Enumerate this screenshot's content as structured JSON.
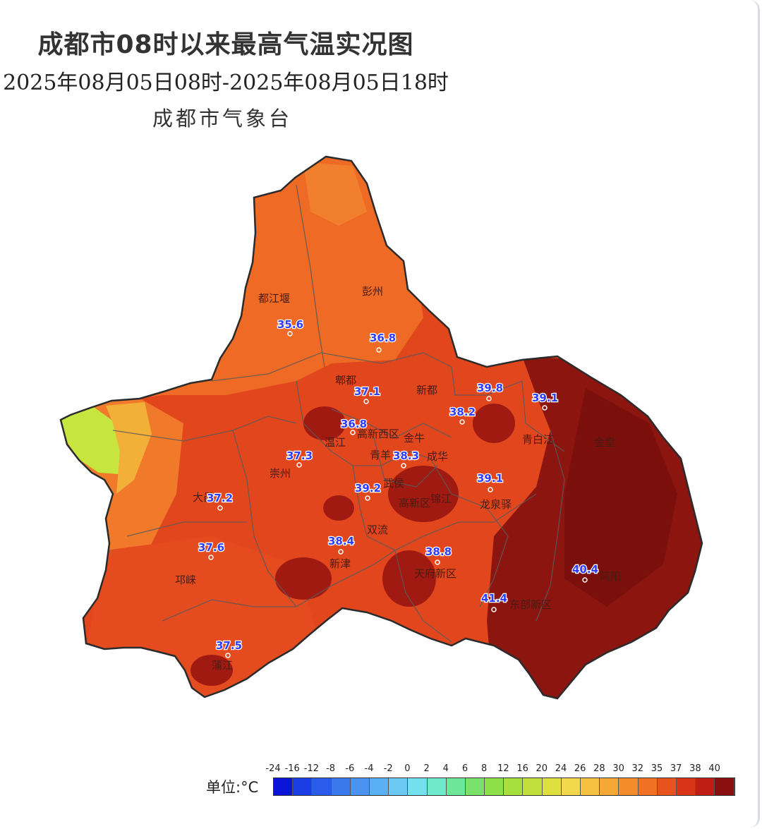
{
  "title": "成都市08时以来最高气温实况图",
  "subtitle": "2025年08月05日08时-2025年08月05日18时",
  "source": "成都市气象台",
  "places": [
    {
      "name": "都江堰"
    },
    {
      "name": "彭州"
    },
    {
      "name": "郫都"
    },
    {
      "name": "新都"
    },
    {
      "name": "温江"
    },
    {
      "name": "高新西区"
    },
    {
      "name": "金牛"
    },
    {
      "name": "青羊"
    },
    {
      "name": "成华"
    },
    {
      "name": "青白江"
    },
    {
      "name": "金堂"
    },
    {
      "name": "崇州"
    },
    {
      "name": "大邑"
    },
    {
      "name": "武侯"
    },
    {
      "name": "高新区"
    },
    {
      "name": "锦江"
    },
    {
      "name": "龙泉驿"
    },
    {
      "name": "双流"
    },
    {
      "name": "新津"
    },
    {
      "name": "天府新区"
    },
    {
      "name": "简阳"
    },
    {
      "name": "东部新区"
    },
    {
      "name": "邛崃"
    },
    {
      "name": "蒲江"
    }
  ],
  "stations": [
    {
      "value": "35.6"
    },
    {
      "value": "36.8"
    },
    {
      "value": "37.1"
    },
    {
      "value": "39.8"
    },
    {
      "value": "39.1"
    },
    {
      "value": "38.2"
    },
    {
      "value": "36.8"
    },
    {
      "value": "37.3"
    },
    {
      "value": "38.3"
    },
    {
      "value": "39.1"
    },
    {
      "value": "37.2"
    },
    {
      "value": "39.2"
    },
    {
      "value": "37.6"
    },
    {
      "value": "38.4"
    },
    {
      "value": "38.8"
    },
    {
      "value": "40.4"
    },
    {
      "value": "41.4"
    },
    {
      "value": "37.5"
    }
  ],
  "legend": {
    "unit_label": "单位:°C",
    "ticks": [
      "-24",
      "-16",
      "-12",
      "-8",
      "-6",
      "-4",
      "-2",
      "0",
      "2",
      "4",
      "6",
      "8",
      "12",
      "16",
      "20",
      "24",
      "26",
      "28",
      "30",
      "32",
      "35",
      "37",
      "38",
      "40"
    ],
    "colors": [
      "#0a14d8",
      "#1a3de6",
      "#2a5bea",
      "#3a78ee",
      "#4a94f0",
      "#5ab0f2",
      "#6ac8f2",
      "#74e0ee",
      "#6eeacb",
      "#6ee69a",
      "#7ae26a",
      "#8ee04a",
      "#a6e03c",
      "#c2e03c",
      "#dee040",
      "#f2d84a",
      "#f6c040",
      "#f6a836",
      "#f48c2c",
      "#f07024",
      "#e8521c",
      "#da3418",
      "#c01e14",
      "#8a1010"
    ]
  },
  "map_fills": {
    "northwest": "#ef6a24",
    "center": "#e2461d",
    "east": "#8c1510",
    "southwest": "#e44b1f",
    "far_west": "#c6e63f",
    "hot_spot": "#a11a12"
  }
}
